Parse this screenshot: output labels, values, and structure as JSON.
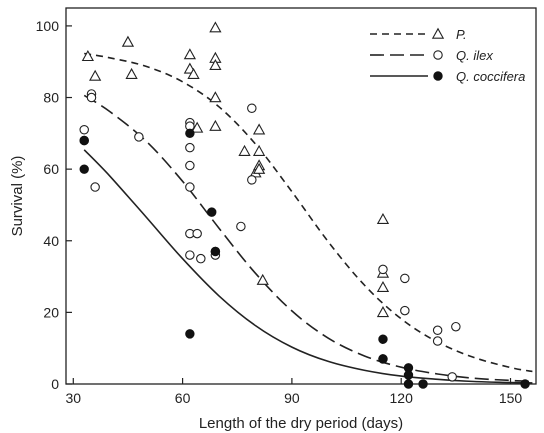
{
  "chart_data": {
    "type": "scatter",
    "xlabel": "Length of the dry period (days)",
    "ylabel": "Survival (%)",
    "xlim": [
      28,
      157
    ],
    "ylim": [
      0,
      105
    ],
    "xticks": [
      30,
      60,
      90,
      120,
      150
    ],
    "yticks": [
      0,
      20,
      40,
      60,
      80,
      100
    ],
    "grid": false,
    "legend_position": "top-right",
    "series": [
      {
        "name": "P.",
        "marker": "triangle-open",
        "line": "short-dash",
        "curve": [
          [
            33,
            92.3
          ],
          [
            40,
            91.1
          ],
          [
            50,
            88.7
          ],
          [
            60,
            84.4
          ],
          [
            70,
            77.4
          ],
          [
            80,
            67
          ],
          [
            90,
            53.7
          ],
          [
            100,
            39.7
          ],
          [
            110,
            27.5
          ],
          [
            120,
            18.2
          ],
          [
            130,
            11.7
          ],
          [
            140,
            7.4
          ],
          [
            150,
            4.6
          ],
          [
            156,
            3.5
          ]
        ],
        "points": [
          [
            34,
            91.5
          ],
          [
            36,
            86
          ],
          [
            45,
            95.5
          ],
          [
            46,
            86.5
          ],
          [
            62,
            92
          ],
          [
            62,
            88
          ],
          [
            63,
            86.5
          ],
          [
            64,
            71.5
          ],
          [
            69,
            99.5
          ],
          [
            69,
            91
          ],
          [
            69,
            89
          ],
          [
            69,
            80
          ],
          [
            69,
            72
          ],
          [
            77,
            65
          ],
          [
            80,
            59
          ],
          [
            81,
            71
          ],
          [
            81,
            61
          ],
          [
            81,
            60
          ],
          [
            81,
            65
          ],
          [
            82,
            29
          ],
          [
            115,
            46
          ],
          [
            115,
            31
          ],
          [
            115,
            27
          ],
          [
            115,
            20
          ]
        ]
      },
      {
        "name": "Q. ilex",
        "marker": "circle-open",
        "line": "long-dash",
        "curve": [
          [
            33,
            80.6
          ],
          [
            40,
            76.1
          ],
          [
            50,
            67.8
          ],
          [
            60,
            56.6
          ],
          [
            70,
            43.5
          ],
          [
            80,
            30.9
          ],
          [
            90,
            20.4
          ],
          [
            100,
            12.8
          ],
          [
            110,
            7.8
          ],
          [
            120,
            4.7
          ],
          [
            130,
            2.8
          ],
          [
            140,
            1.6
          ],
          [
            150,
            1
          ],
          [
            156,
            0.7
          ]
        ],
        "points": [
          [
            33,
            71
          ],
          [
            33,
            68
          ],
          [
            35,
            81
          ],
          [
            35,
            80
          ],
          [
            36,
            55
          ],
          [
            48,
            69
          ],
          [
            62,
            73
          ],
          [
            62,
            72
          ],
          [
            62,
            66
          ],
          [
            62,
            61
          ],
          [
            62,
            55
          ],
          [
            62,
            42
          ],
          [
            62,
            36
          ],
          [
            64,
            42
          ],
          [
            65,
            35
          ],
          [
            69,
            37
          ],
          [
            69,
            36
          ],
          [
            76,
            44
          ],
          [
            79,
            77
          ],
          [
            79,
            57
          ],
          [
            115,
            32
          ],
          [
            115,
            7
          ],
          [
            121,
            29.5
          ],
          [
            121,
            20.5
          ],
          [
            130,
            15
          ],
          [
            130,
            12
          ],
          [
            134,
            2
          ],
          [
            135,
            16
          ]
        ]
      },
      {
        "name": "Q. coccifera",
        "marker": "circle-filled",
        "line": "solid",
        "curve": [
          [
            33,
            65.4
          ],
          [
            40,
            58.1
          ],
          [
            50,
            46.6
          ],
          [
            60,
            35
          ],
          [
            70,
            24.6
          ],
          [
            80,
            16.3
          ],
          [
            90,
            10.3
          ],
          [
            100,
            6.3
          ],
          [
            110,
            3.8
          ],
          [
            120,
            2.2
          ],
          [
            130,
            1.3
          ],
          [
            140,
            0.7
          ],
          [
            150,
            0.4
          ],
          [
            156,
            0.3
          ]
        ],
        "points": [
          [
            33,
            68
          ],
          [
            33,
            60
          ],
          [
            62,
            70
          ],
          [
            62,
            14
          ],
          [
            68,
            48
          ],
          [
            69,
            37
          ],
          [
            115,
            12.5
          ],
          [
            115,
            7
          ],
          [
            122,
            4.5
          ],
          [
            122,
            2.5
          ],
          [
            122,
            0
          ],
          [
            126,
            0
          ],
          [
            154,
            0
          ]
        ]
      }
    ]
  }
}
